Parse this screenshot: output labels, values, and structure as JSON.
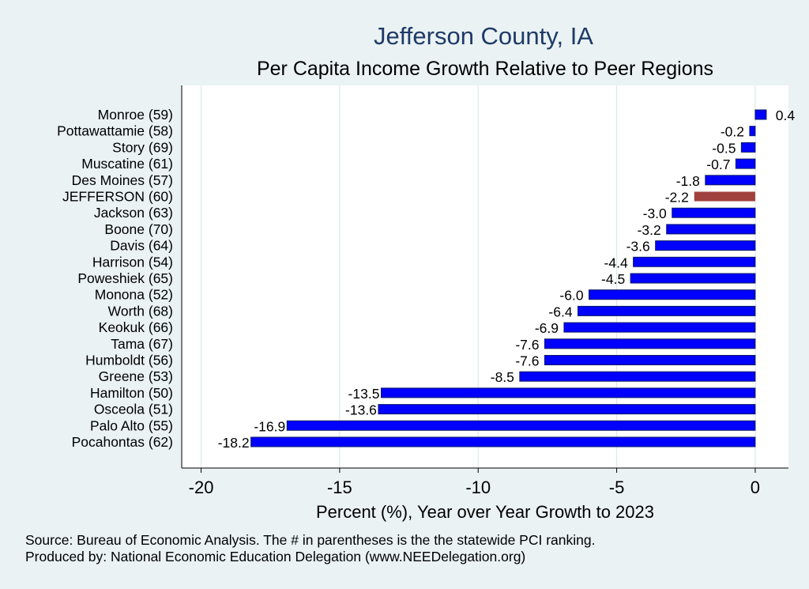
{
  "chart_data": {
    "type": "bar",
    "orientation": "horizontal",
    "title": "Jefferson County, IA",
    "subtitle": "Per Capita Income Growth Relative to Peer Regions",
    "xlabel": "Percent (%), Year over Year Growth to 2023",
    "xlim": [
      -20.7,
      1.2
    ],
    "xticks": [
      -20,
      -15,
      -10,
      -5,
      0
    ],
    "grid": true,
    "colors": {
      "bar": "#0000ff",
      "highlight": "#a0413e",
      "grid": "#dde8ec",
      "plot_bg": "#ffffff",
      "bar_edge": "#0a1a66"
    },
    "highlight": "JEFFERSON (60)",
    "categories": [
      "Monroe (59)",
      "Pottawattamie (58)",
      "Story (69)",
      "Muscatine (61)",
      "Des Moines (57)",
      "JEFFERSON (60)",
      "Jackson (63)",
      "Boone (70)",
      "Davis (64)",
      "Harrison (54)",
      "Poweshiek (65)",
      "Monona (52)",
      "Worth (68)",
      "Keokuk (66)",
      "Tama (67)",
      "Humboldt (56)",
      "Greene (53)",
      "Hamilton (50)",
      "Osceola (51)",
      "Palo Alto (55)",
      "Pocahontas (62)"
    ],
    "values": [
      0.4,
      -0.2,
      -0.5,
      -0.7,
      -1.8,
      -2.2,
      -3.0,
      -3.2,
      -3.6,
      -4.4,
      -4.5,
      -6.0,
      -6.4,
      -6.9,
      -7.6,
      -7.6,
      -8.5,
      -13.5,
      -13.6,
      -16.9,
      -18.2
    ],
    "labels": [
      "0.4",
      "-0.2",
      "-0.5",
      "-0.7",
      "-1.8",
      "-2.2",
      "-3.0",
      "-3.2",
      "-3.6",
      "-4.4",
      "-4.5",
      "-6.0",
      "-6.4",
      "-6.9",
      "-7.6",
      "-7.6",
      "-8.5",
      "-13.5",
      "-13.6",
      "-16.9",
      "-18.2"
    ]
  },
  "footer": {
    "source": "Source: Bureau of Economic Analysis. The # in parentheses is the the statewide PCI ranking.",
    "produced_by": "Produced by: National Economic Education Delegation (www.NEEDelegation.org)"
  }
}
